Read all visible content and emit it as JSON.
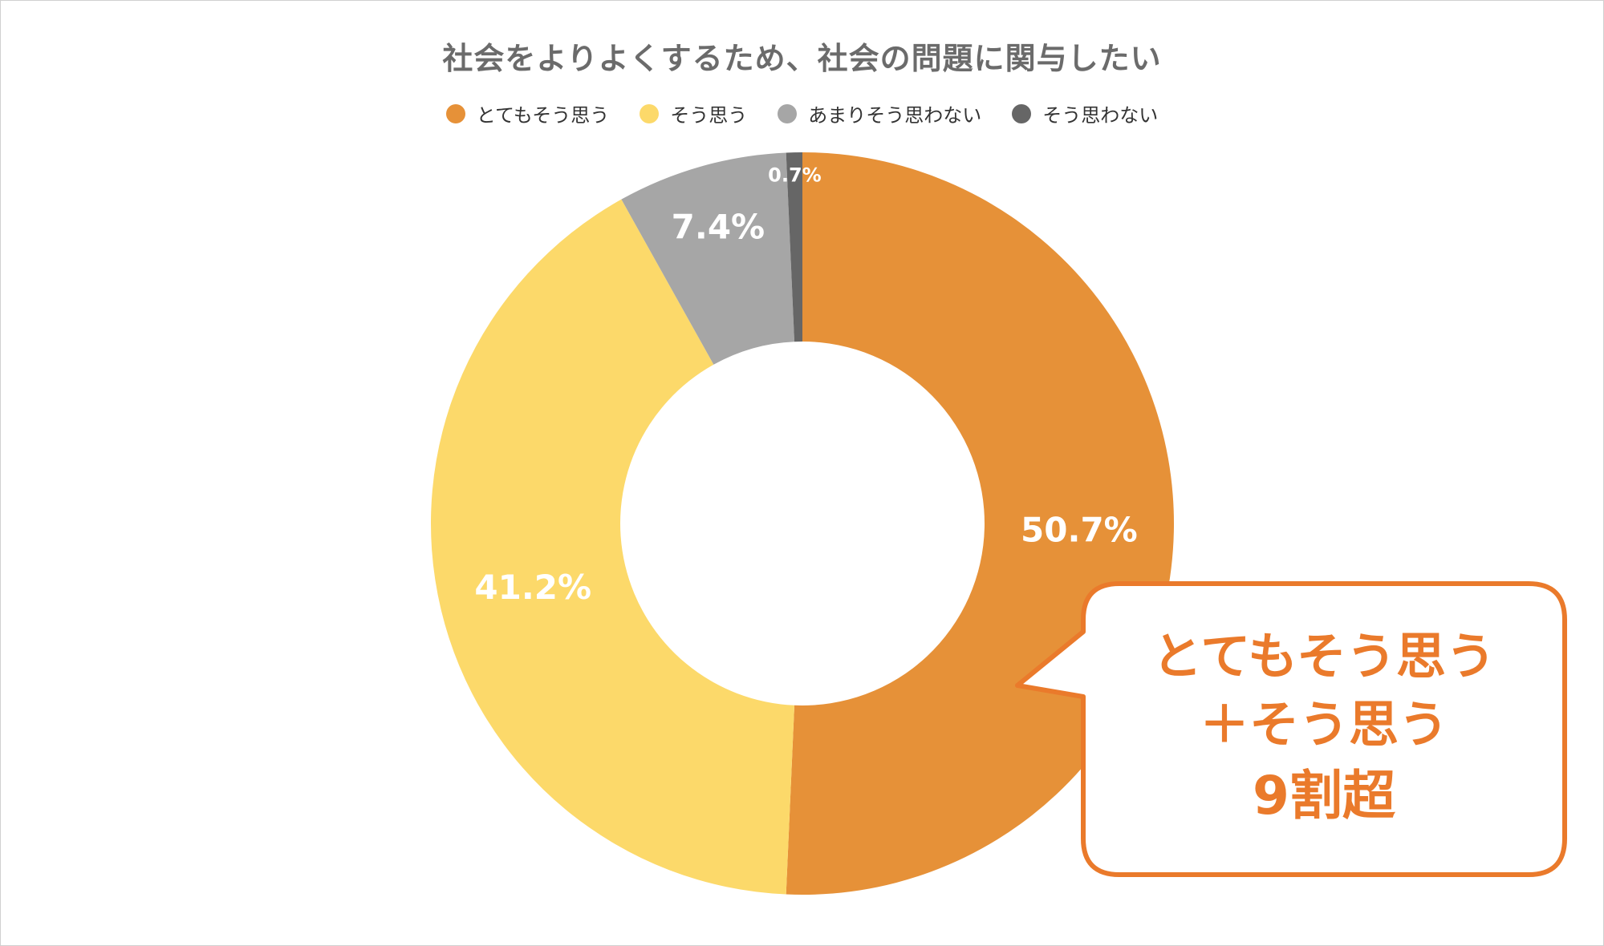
{
  "chart_data": {
    "type": "pie",
    "title": "社会をよりよくするため、社会の問題に関与したい",
    "categories": [
      "とてもそう思う",
      "そう思う",
      "あまりそう思わない",
      "そう思わない"
    ],
    "values": [
      50.7,
      41.2,
      7.4,
      0.7
    ],
    "value_labels": [
      "50.7%",
      "41.2%",
      "7.4%",
      "0.7%"
    ],
    "colors": [
      "#e69138",
      "#fcd96a",
      "#a6a6a6",
      "#666666"
    ],
    "donut": true,
    "legend_position": "top",
    "start": "12 o'clock, clockwise"
  },
  "callout": {
    "line1": "とてもそう思う",
    "line2": "＋そう思う",
    "line3": "9割超",
    "color": "#ea7a2b"
  }
}
